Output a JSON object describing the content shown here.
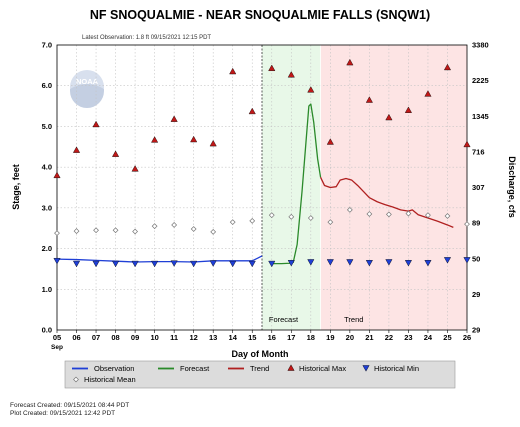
{
  "chart_data": {
    "type": "line",
    "title": "NF SNOQUALMIE - NEAR SNOQUALMIE FALLS  (SNQW1)",
    "subtitle": "Latest Observation: 1.8 ft 09/15/2021 12:15 PDT",
    "xlabel": "Day of Month",
    "ylabel": "Stage, feet",
    "y2label": "Discharge, cfs",
    "xlim": [
      5,
      26
    ],
    "ylim": [
      0,
      7
    ],
    "x_ticks": [
      "05",
      "06",
      "07",
      "08",
      "09",
      "10",
      "11",
      "12",
      "13",
      "14",
      "15",
      "16",
      "17",
      "18",
      "19",
      "20",
      "21",
      "22",
      "23",
      "24",
      "25",
      "26"
    ],
    "x_month": "Sep",
    "y_ticks": [
      "0.0",
      "1.0",
      "2.0",
      "3.0",
      "4.0",
      "5.0",
      "6.0",
      "7.0"
    ],
    "y2_ticks": [
      "29",
      "29",
      "50",
      "89",
      "307",
      "716",
      "1345",
      "2225",
      "3380"
    ],
    "logo_text": "NOAA",
    "observation_end": 15.5,
    "forecast_end": 18.5,
    "regions": [
      {
        "label": "Forecast",
        "x": 16.6,
        "color": "#e8f8e8"
      },
      {
        "label": "Trend",
        "x": 20.2,
        "color": "#fde4e4"
      }
    ],
    "series": [
      {
        "name": "Observation",
        "color": "#1f3fd6",
        "x": [
          5.0,
          6.0,
          7.0,
          8.0,
          9.0,
          10.0,
          11.0,
          12.0,
          13.0,
          14.0,
          15.0,
          15.3,
          15.5
        ],
        "values": [
          1.74,
          1.73,
          1.71,
          1.69,
          1.67,
          1.68,
          1.68,
          1.67,
          1.7,
          1.7,
          1.7,
          1.77,
          1.82
        ]
      },
      {
        "name": "Forecast",
        "color": "#2a8a2a",
        "x": [
          16.0,
          16.5,
          16.9,
          17.1,
          17.3,
          17.55,
          17.75,
          17.9,
          18.0,
          18.15,
          18.35,
          18.5
        ],
        "values": [
          1.63,
          1.63,
          1.64,
          1.66,
          2.1,
          3.4,
          4.6,
          5.5,
          5.55,
          5.1,
          4.2,
          3.75
        ]
      },
      {
        "name": "Trend",
        "color": "#b02020",
        "x": [
          18.5,
          18.7,
          19.0,
          19.3,
          19.5,
          19.8,
          20.1,
          20.4,
          20.7,
          21.0,
          21.4,
          21.8,
          22.2,
          22.6,
          23.0,
          23.2,
          23.5,
          24.0,
          24.5,
          25.0,
          25.3
        ],
        "values": [
          3.75,
          3.55,
          3.5,
          3.52,
          3.68,
          3.72,
          3.68,
          3.55,
          3.4,
          3.25,
          3.15,
          3.08,
          3.02,
          2.95,
          2.92,
          2.95,
          2.83,
          2.75,
          2.67,
          2.58,
          2.52
        ]
      },
      {
        "name": "Historical Max",
        "color": "#c01818",
        "x": [
          5.0,
          6.0,
          7.0,
          8.0,
          9.0,
          10.0,
          11.0,
          12.0,
          13.0,
          14.0,
          15.0,
          16.0,
          17.0,
          18.0,
          19.0,
          20.0,
          21.0,
          22.0,
          23.0,
          24.0,
          25.0,
          26.0
        ],
        "values": [
          3.8,
          4.42,
          5.05,
          4.32,
          3.96,
          4.67,
          5.18,
          4.68,
          4.58,
          6.35,
          5.37,
          6.43,
          6.27,
          5.9,
          4.62,
          6.57,
          5.65,
          5.22,
          5.4,
          5.8,
          6.45,
          4.56
        ]
      },
      {
        "name": "Historical Min",
        "color": "#1f3fd6",
        "x": [
          5.0,
          6.0,
          7.0,
          8.0,
          9.0,
          10.0,
          11.0,
          12.0,
          13.0,
          14.0,
          15.0,
          16.0,
          17.0,
          18.0,
          19.0,
          20.0,
          21.0,
          22.0,
          23.0,
          24.0,
          25.0,
          26.0
        ],
        "values": [
          1.7,
          1.63,
          1.63,
          1.63,
          1.63,
          1.63,
          1.64,
          1.63,
          1.64,
          1.63,
          1.63,
          1.63,
          1.65,
          1.67,
          1.67,
          1.67,
          1.65,
          1.67,
          1.65,
          1.65,
          1.72,
          1.72
        ]
      },
      {
        "name": "Historical Mean",
        "color": "#777777",
        "x": [
          5.0,
          6.0,
          7.0,
          8.0,
          9.0,
          10.0,
          11.0,
          12.0,
          13.0,
          14.0,
          15.0,
          16.0,
          17.0,
          18.0,
          19.0,
          20.0,
          21.0,
          22.0,
          23.0,
          24.0,
          25.0,
          26.0
        ],
        "values": [
          2.38,
          2.43,
          2.45,
          2.45,
          2.42,
          2.55,
          2.58,
          2.48,
          2.41,
          2.65,
          2.68,
          2.82,
          2.78,
          2.75,
          2.65,
          2.95,
          2.85,
          2.84,
          2.86,
          2.82,
          2.8,
          2.6
        ]
      }
    ],
    "legend": {
      "placement": "bottom",
      "items": [
        {
          "label": "Observation",
          "kind": "line",
          "color": "#1f3fd6"
        },
        {
          "label": "Forecast",
          "kind": "line",
          "color": "#2a8a2a"
        },
        {
          "label": "Trend",
          "kind": "line",
          "color": "#b02020"
        },
        {
          "label": "Historical Max",
          "kind": "tri-up",
          "color": "#c01818"
        },
        {
          "label": "Historical Min",
          "kind": "tri-down",
          "color": "#1f3fd6"
        },
        {
          "label": "Historical Mean",
          "kind": "diamond",
          "color": "#777777"
        }
      ]
    },
    "grid": true
  },
  "footer": {
    "forecast_created": "Forecast Created: 09/15/2021 08:44 PDT",
    "plot_created": "Plot Created: 09/15/2021 12:42 PDT"
  }
}
